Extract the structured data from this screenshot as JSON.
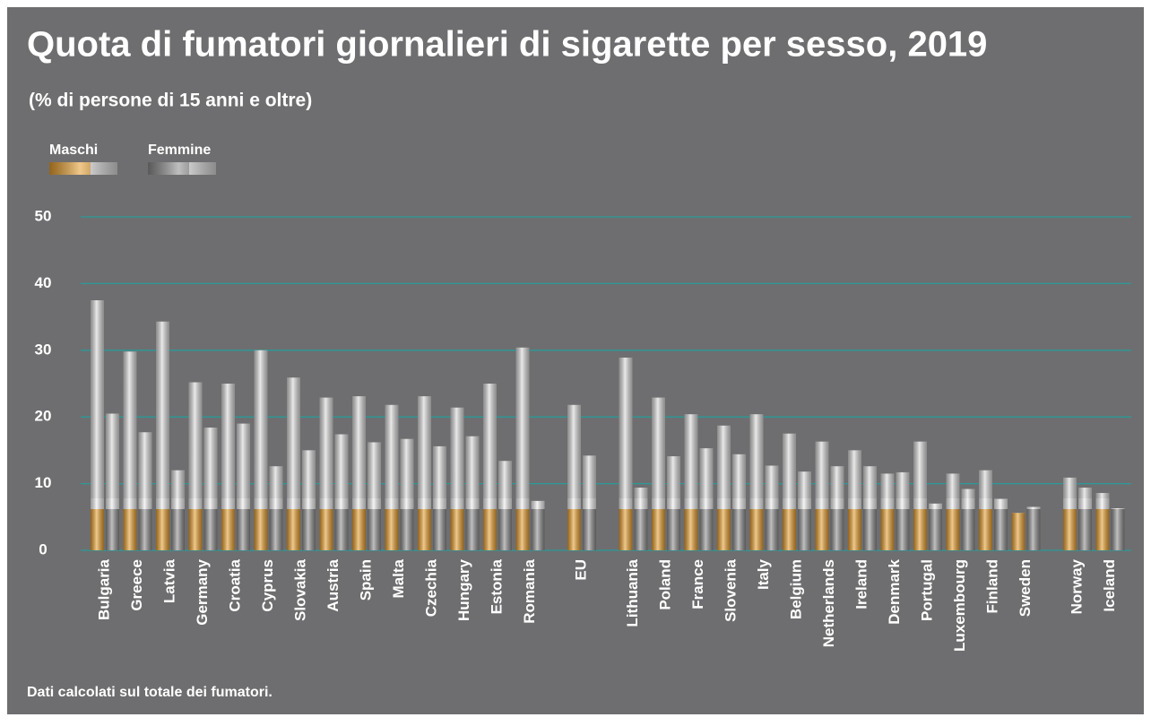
{
  "chart_data": {
    "type": "bar",
    "title": "Quota di fumatori giornalieri di sigarette per sesso, 2019",
    "subtitle": "(% di persone di 15 anni e oltre)",
    "note": "Dati calcolati sul totale dei fumatori.",
    "categories": [
      "Bulgaria",
      "Greece",
      "Latvia",
      "Germany",
      "Croatia",
      "Cyprus",
      "Slovakia",
      "Austria",
      "Spain",
      "Malta",
      "Czechia",
      "Hungary",
      "Estonia",
      "Romania",
      "EU",
      "Lithuania",
      "Poland",
      "France",
      "Slovenia",
      "Italy",
      "Belgium",
      "Netherlands",
      "Ireland",
      "Denmark",
      "Portugal",
      "Luxembourg",
      "Finland",
      "Sweden",
      "Norway",
      "Iceland"
    ],
    "series": [
      {
        "name": "Maschi",
        "color": "#e39b2c",
        "values": [
          37.5,
          29.8,
          34.3,
          25.2,
          25.0,
          30.0,
          25.9,
          22.9,
          23.1,
          21.8,
          23.1,
          21.4,
          25.0,
          30.4,
          21.8,
          28.9,
          22.9,
          20.4,
          18.7,
          20.4,
          17.5,
          16.3,
          15.0,
          11.5,
          16.3,
          11.5,
          12.0,
          5.6,
          10.9,
          8.6
        ]
      },
      {
        "name": "Femmine",
        "color": "#8a8a8a",
        "values": [
          20.5,
          17.7,
          12.0,
          18.4,
          19.0,
          12.6,
          15.0,
          17.4,
          16.2,
          16.7,
          15.6,
          17.1,
          13.4,
          7.4,
          14.2,
          9.4,
          14.1,
          15.3,
          14.4,
          12.7,
          11.8,
          12.6,
          12.6,
          11.7,
          7.0,
          9.2,
          7.7,
          6.5,
          9.4,
          6.3
        ]
      }
    ],
    "ylim": [
      0,
      50
    ],
    "yticks": [
      0,
      10,
      20,
      30,
      40,
      50
    ],
    "grid": true
  }
}
